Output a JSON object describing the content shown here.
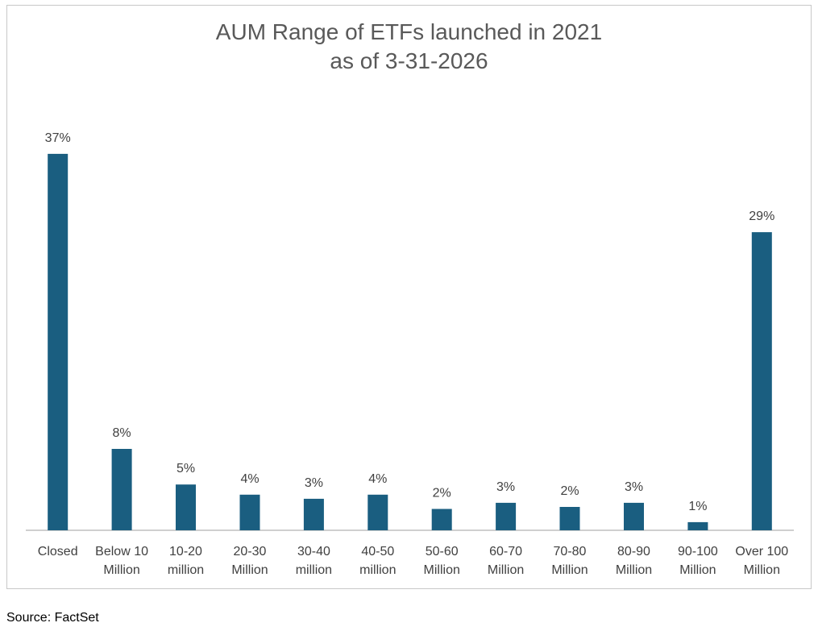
{
  "chart_data": {
    "type": "bar",
    "title": [
      "AUM Range of ETFs launched in 2021",
      "as of 3-31-2026"
    ],
    "categories": [
      [
        "Closed"
      ],
      [
        "Below 10",
        "Million"
      ],
      [
        "10-20",
        "million"
      ],
      [
        "20-30",
        "Million"
      ],
      [
        "30-40",
        "million"
      ],
      [
        "40-50",
        "million"
      ],
      [
        "50-60",
        "Million"
      ],
      [
        "60-70",
        "Million"
      ],
      [
        "70-80",
        "Million"
      ],
      [
        "80-90",
        "Million"
      ],
      [
        "90-100",
        "Million"
      ],
      [
        "Over 100",
        "Million"
      ]
    ],
    "values": [
      37,
      8,
      5,
      4,
      3,
      4,
      2,
      3,
      2,
      3,
      1,
      29
    ],
    "data_labels": [
      "37%",
      "8%",
      "5%",
      "4%",
      "3%",
      "4%",
      "2%",
      "3%",
      "2%",
      "3%",
      "1%",
      "29%"
    ],
    "bar_values_precise": [
      37,
      8,
      4.5,
      3.5,
      3.1,
      3.5,
      2.1,
      2.7,
      2.3,
      2.7,
      0.8,
      29.3
    ],
    "ylim": [
      0,
      40
    ],
    "grid": false,
    "legend": "none",
    "bar_color": "#1a5e80",
    "axis_color": "#bfbfbf"
  },
  "source": "Source: FactSet"
}
